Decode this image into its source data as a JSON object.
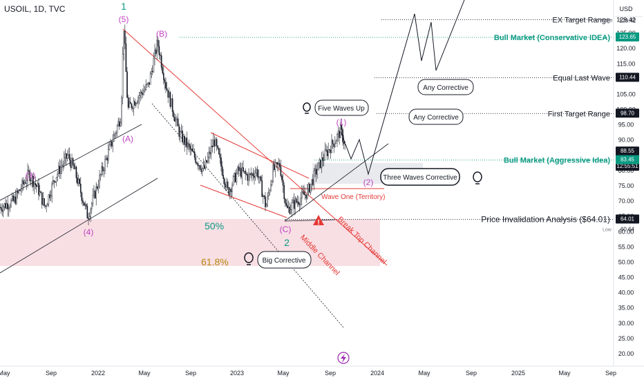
{
  "symbol_header": "USOIL, 1D, TVC",
  "chart_data": {
    "type": "candlestick",
    "title": "USOIL, 1D, TVC",
    "y_axis": {
      "unit": "USD",
      "ticks": [
        20.0,
        25.0,
        30.0,
        35.0,
        40.0,
        45.0,
        50.0,
        55.0,
        60.0,
        65.0,
        70.0,
        75.0,
        80.0,
        85.0,
        90.0,
        95.0,
        100.0,
        105.0,
        110.0,
        115.0,
        120.0,
        125.0,
        129.42
      ],
      "range": [
        18,
        135
      ]
    },
    "x_axis": {
      "ticks": [
        "May",
        "Sep",
        "2022",
        "May",
        "Sep",
        "2023",
        "May",
        "Sep",
        "2024",
        "May",
        "Sep",
        "2025",
        "May",
        "Sep"
      ]
    },
    "price_tags": [
      {
        "value": "129.42",
        "prefix": "High",
        "style": "plain"
      },
      {
        "value": "123.65",
        "style": "green"
      },
      {
        "value": "110.44",
        "style": "dark"
      },
      {
        "value": "98.70",
        "style": "dark"
      },
      {
        "value": "88.55",
        "extra": [
          "+41.92%",
          "12:55:51"
        ],
        "style": "dark"
      },
      {
        "value": "83.45",
        "style": "green"
      },
      {
        "value": "64.01",
        "style": "dark"
      },
      {
        "value": "60.64",
        "prefix": "Low",
        "style": "plain"
      }
    ],
    "levels": [
      {
        "value": 129.42,
        "text": "EX Target Range",
        "color": "#131722",
        "bold": false
      },
      {
        "value": 123.65,
        "text": "Bull Market (Conservative IDEA)",
        "color": "#089981",
        "bold": true
      },
      {
        "value": 110.44,
        "text": "Equal Last Wave",
        "color": "#131722",
        "bold": false
      },
      {
        "value": 98.7,
        "text": "First Target Range",
        "color": "#131722",
        "bold": false
      },
      {
        "value": 83.45,
        "text": "Bull Market (Aggressive Idea)",
        "color": "#089981",
        "bold": true
      },
      {
        "value": 64.01,
        "text": "Price Invalidation Analysis ($64.01)",
        "color": "#131722",
        "bold": false
      }
    ],
    "fib_labels": [
      {
        "text": "50%",
        "color": "#089981"
      },
      {
        "text": "61.8%",
        "color": "#b8860b"
      }
    ],
    "wave_labels": [
      {
        "text": "1",
        "color": "#089981"
      },
      {
        "text": "(5)",
        "color": "#c040c0"
      },
      {
        "text": "(B)",
        "color": "#c040c0"
      },
      {
        "text": "(3)",
        "color": "#c040c0"
      },
      {
        "text": "(A)",
        "color": "#c040c0"
      },
      {
        "text": "(4)",
        "color": "#c040c0"
      },
      {
        "text": "(C)",
        "color": "#c040c0"
      },
      {
        "text": "2",
        "color": "#089981"
      },
      {
        "text": "(1)",
        "color": "#c040c0"
      },
      {
        "text": "(2)",
        "color": "#c040c0"
      }
    ],
    "callouts": [
      "Five Waves Up",
      "Any Corrective",
      "Any Corrective",
      "Three Waves Corrective",
      "Big Corrective"
    ],
    "channel_labels": [
      "Wave One (Territory)",
      "Break Top Channel",
      "Middle Channel"
    ],
    "colors": {
      "candles": "#131722",
      "fib_zone": "#f7d9df",
      "channel_red": "#e53935",
      "wave_purple": "#c040c0",
      "wave_green": "#089981",
      "level_green": "#089981"
    }
  }
}
